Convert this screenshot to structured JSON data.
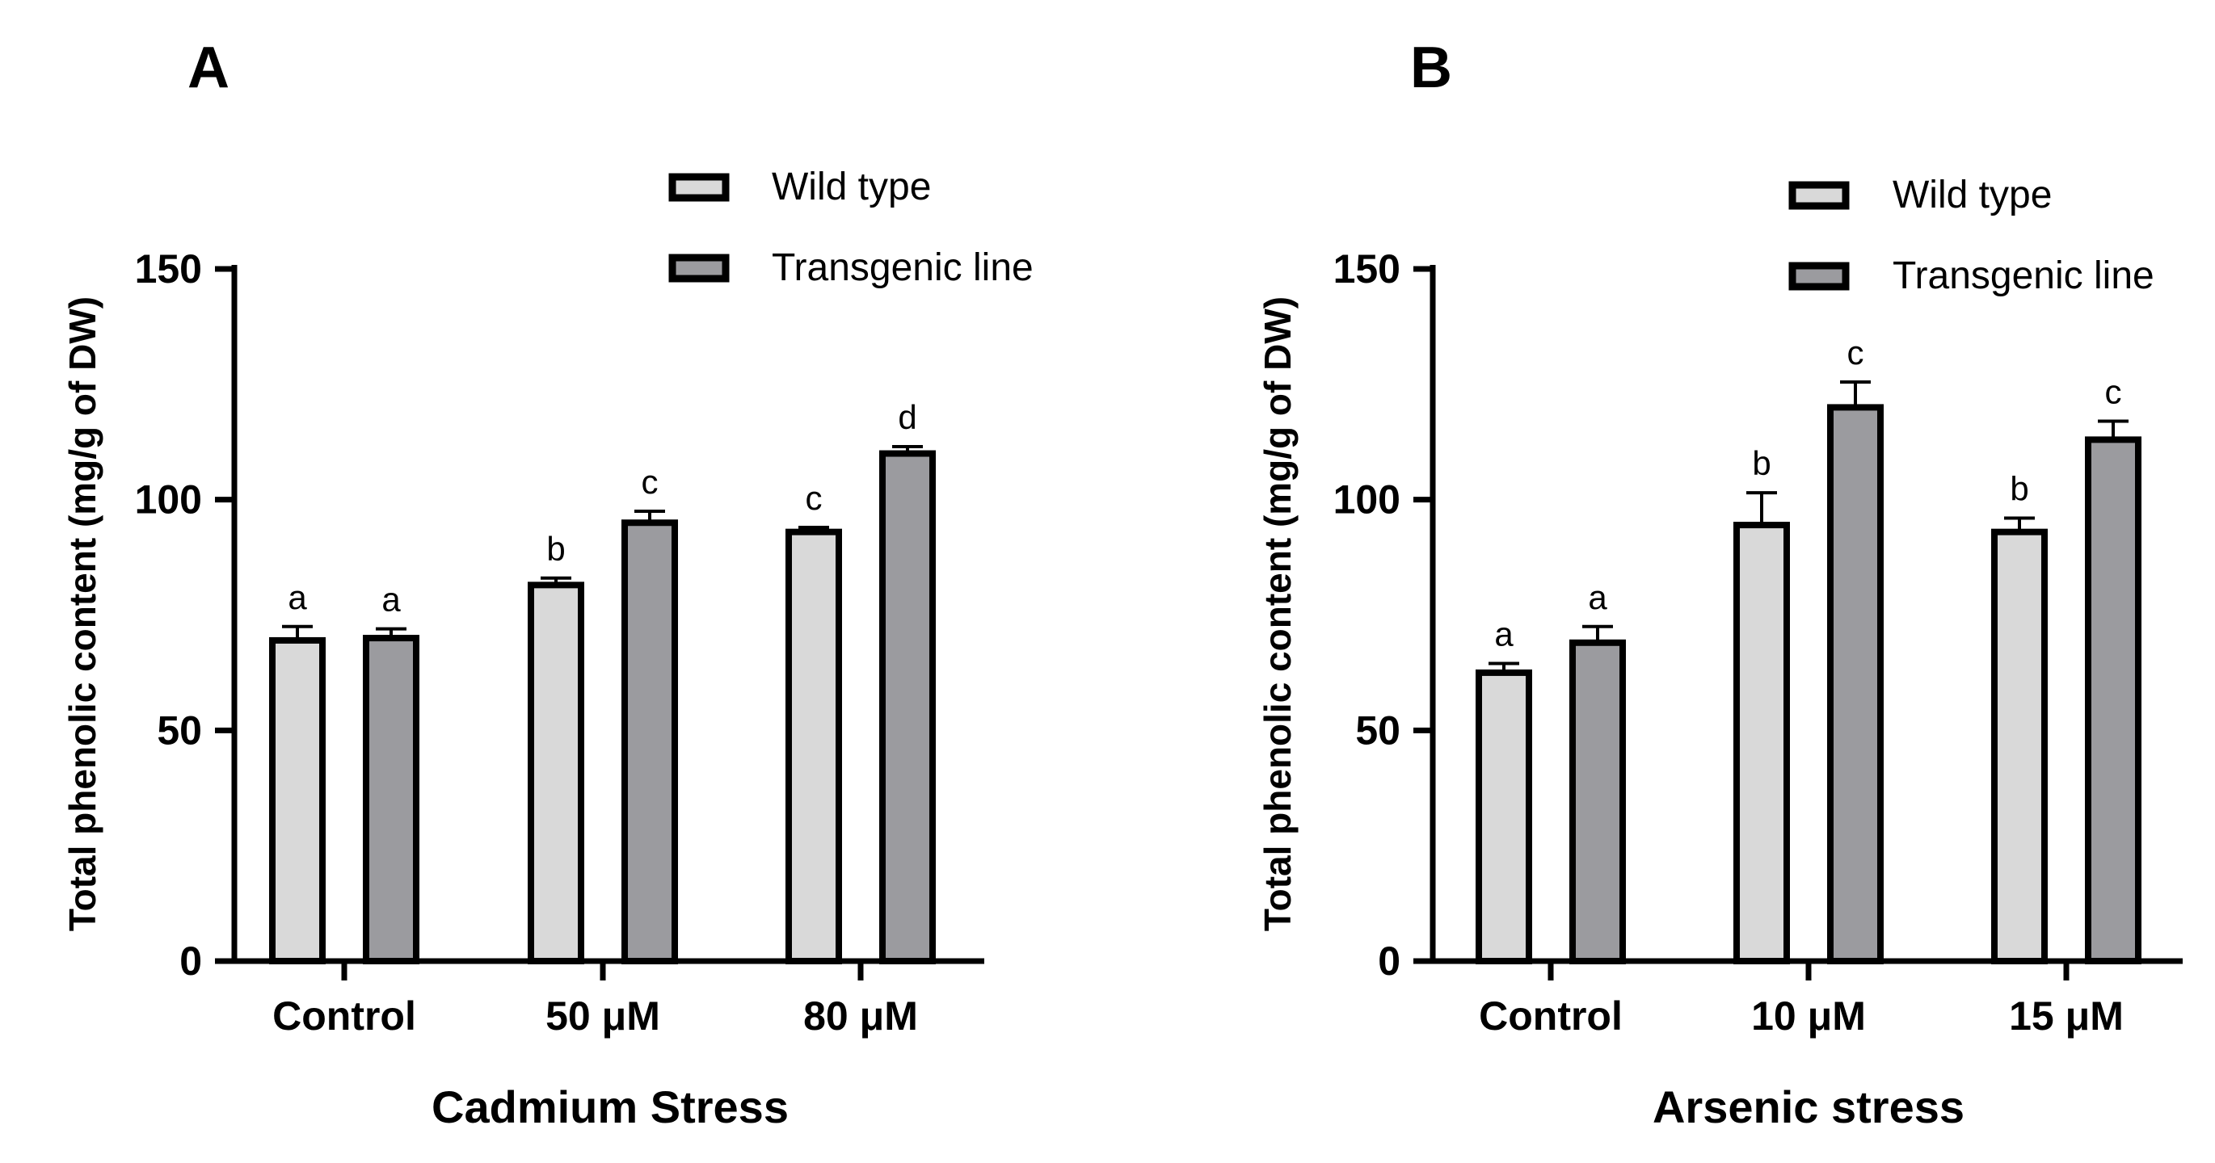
{
  "chart_data": [
    {
      "panel": "A",
      "type": "bar",
      "categories": [
        "Control",
        "50 μM",
        "80 μM"
      ],
      "series": [
        {
          "name": "Wild type",
          "color": "#d9d9d9",
          "values": [
            69.5,
            81.5,
            93
          ],
          "errors": [
            3,
            1.5,
            1
          ],
          "letters": [
            "a",
            "b",
            "c"
          ]
        },
        {
          "name": "Transgenic line",
          "color": "#9b9b9f",
          "values": [
            70,
            95,
            110
          ],
          "errors": [
            2,
            2.5,
            1.5
          ],
          "letters": [
            "a",
            "c",
            "d"
          ]
        }
      ],
      "xlabel": "Cadmium Stress",
      "ylabel": "Total phenolic content (mg/g of DW)",
      "ylim": [
        0,
        150
      ],
      "yticks": [
        "0",
        "50",
        "100",
        "150"
      ],
      "legend_position": "top-right"
    },
    {
      "panel": "B",
      "type": "bar",
      "categories": [
        "Control",
        "10 μM",
        "15 μM"
      ],
      "series": [
        {
          "name": "Wild type",
          "color": "#d9d9d9",
          "values": [
            62.5,
            94.5,
            93
          ],
          "errors": [
            2,
            7,
            3
          ],
          "letters": [
            "a",
            "b",
            "b"
          ]
        },
        {
          "name": "Transgenic line",
          "color": "#9b9b9f",
          "values": [
            69,
            120,
            113
          ],
          "errors": [
            3.5,
            5.5,
            4
          ],
          "letters": [
            "a",
            "c",
            "c"
          ]
        }
      ],
      "xlabel": "Arsenic stress",
      "ylabel": "Total phenolic content (mg/g of DW)",
      "ylim": [
        0,
        150
      ],
      "yticks": [
        "0",
        "50",
        "100",
        "150"
      ],
      "legend_position": "top-right"
    }
  ]
}
